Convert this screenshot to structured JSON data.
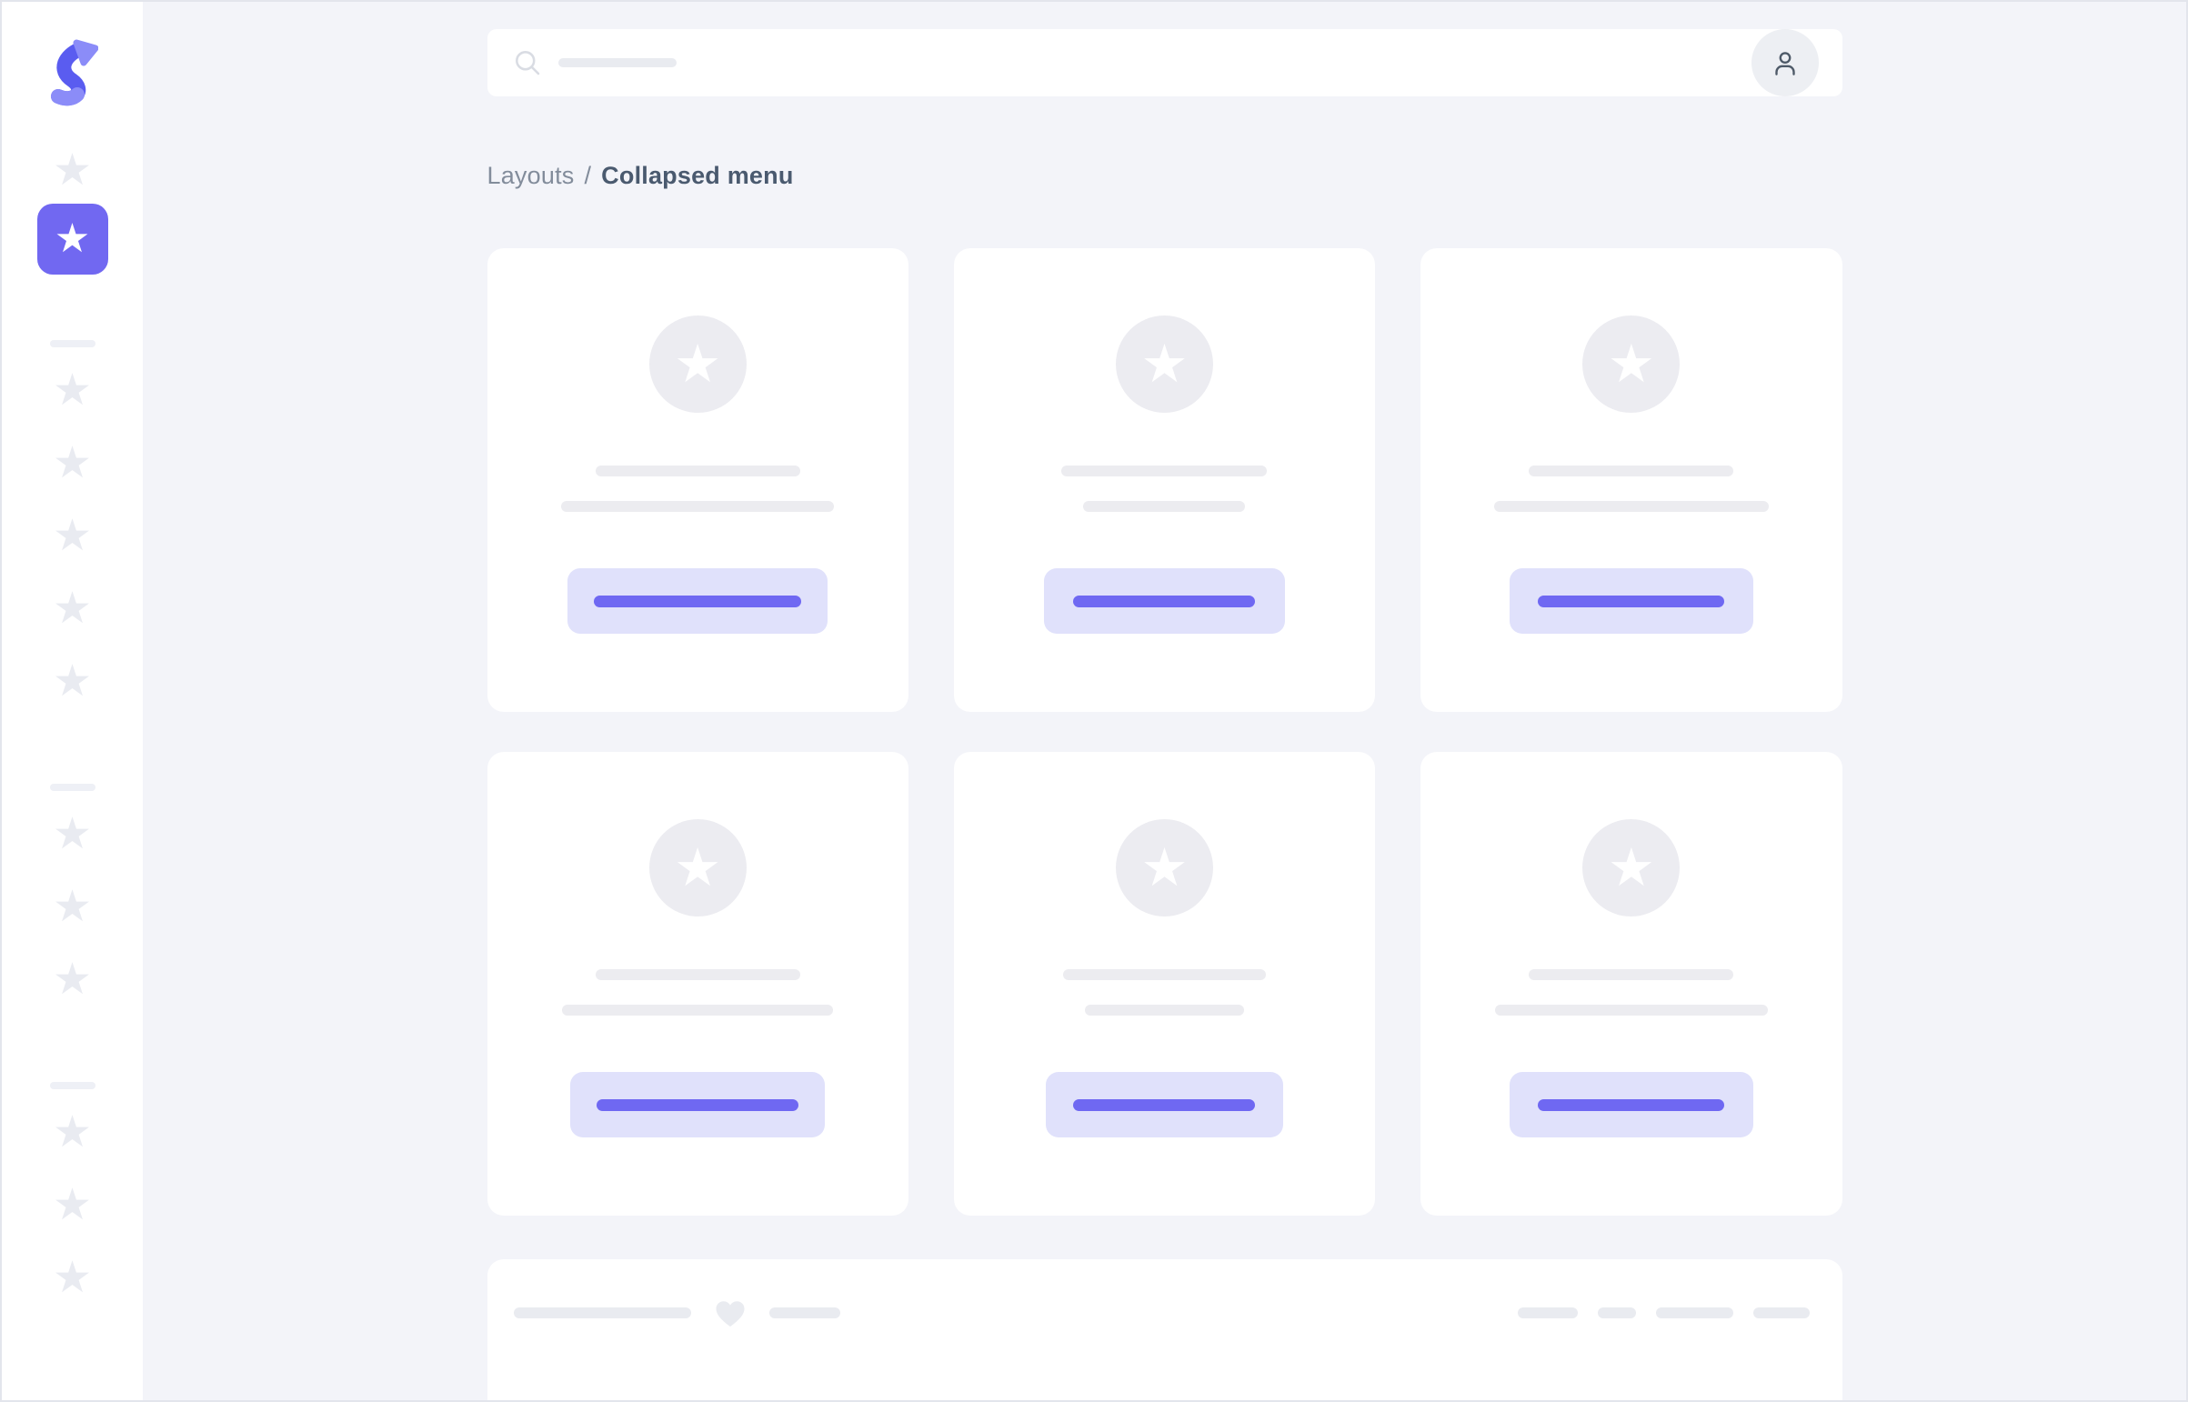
{
  "colors": {
    "background": "#f3f4f9",
    "surface": "#ffffff",
    "frame_border": "#e3e5ec",
    "accent": "#7168f1",
    "accent_light": "#e0e1fb",
    "accent_bar": "#6f68f2",
    "placeholder": "#e9ebf0",
    "placeholder_dark": "#ececf0",
    "avatar_bg": "#ececf1",
    "divider": "#eef0f6",
    "sidebar_star": "#e9ebf1",
    "breadcrumb_text": "#828c9b",
    "breadcrumb_current": "#4a5a6f",
    "icon_dark": "#4e5a68",
    "search_icon": "#d9dce3",
    "profile_bg": "#edeff3",
    "logo_light": "#8b8cf8",
    "logo_dark": "#5a5cf0"
  },
  "sidebar": {
    "logo_icon": "s-arrow-logo",
    "pre_group": {
      "inactive_stars": 1,
      "icon": "star-icon"
    },
    "active_item": {
      "icon": "star-icon",
      "active": true
    },
    "groups": [
      {
        "stars": 5
      },
      {
        "stars": 3
      },
      {
        "stars": 3
      }
    ]
  },
  "topbar": {
    "search": {
      "icon": "search-icon",
      "placeholder_bar_width": 130
    },
    "profile": {
      "icon": "user-icon"
    }
  },
  "breadcrumb": {
    "parent": "Layouts",
    "separator": "/",
    "current": "Collapsed menu"
  },
  "grid": {
    "columns": 3,
    "cards": [
      {
        "avatar_icon": "star-icon",
        "line1_width": 225,
        "line2_width": 300,
        "button_width": 286,
        "button_bar_width": 228
      },
      {
        "avatar_icon": "star-icon",
        "line1_width": 226,
        "line2_width": 178,
        "button_width": 265,
        "button_bar_width": 200
      },
      {
        "avatar_icon": "star-icon",
        "line1_width": 225,
        "line2_width": 302,
        "button_width": 268,
        "button_bar_width": 205
      },
      {
        "avatar_icon": "star-icon",
        "line1_width": 225,
        "line2_width": 298,
        "button_width": 280,
        "button_bar_width": 222
      },
      {
        "avatar_icon": "star-icon",
        "line1_width": 223,
        "line2_width": 175,
        "button_width": 261,
        "button_bar_width": 200
      },
      {
        "avatar_icon": "star-icon",
        "line1_width": 225,
        "line2_width": 300,
        "button_width": 268,
        "button_bar_width": 205
      }
    ]
  },
  "footer": {
    "left_bar_widths": [
      195,
      78
    ],
    "heart_icon": "heart-icon",
    "right_bar_widths": [
      66,
      42,
      85,
      62
    ]
  }
}
